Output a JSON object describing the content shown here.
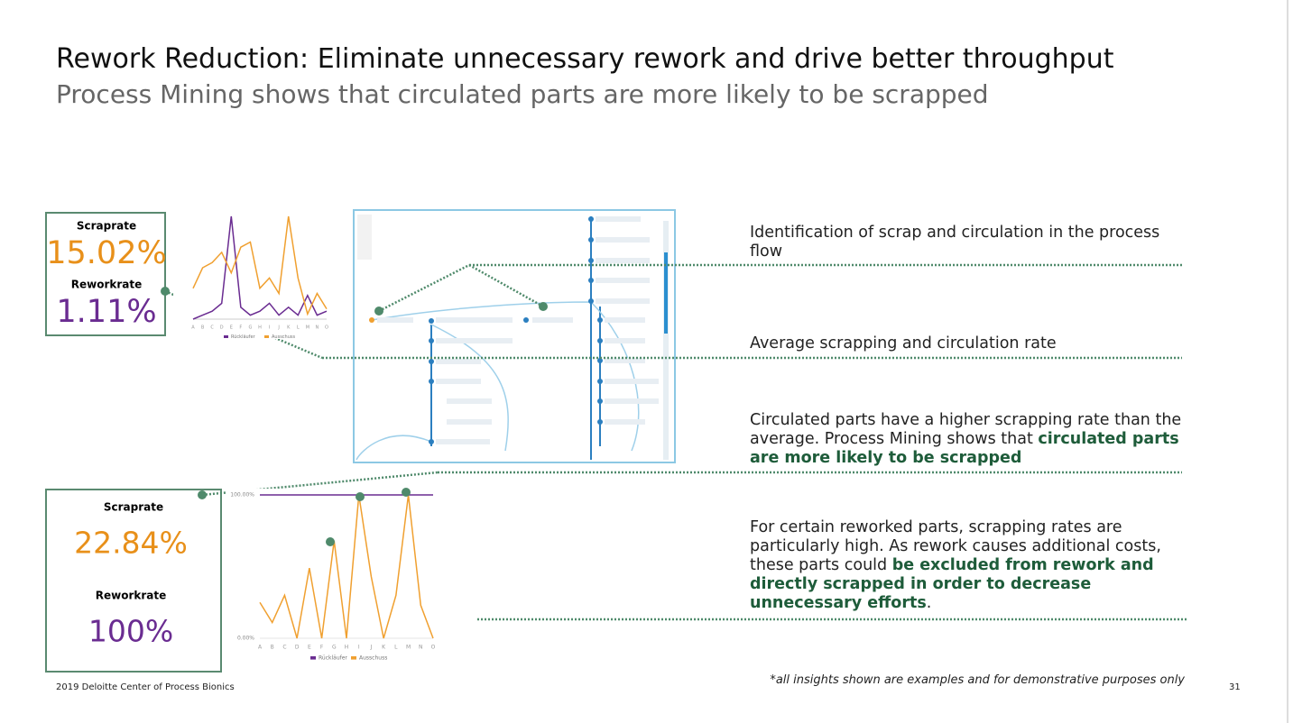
{
  "header": {
    "title": "Rework Reduction: Eliminate unnecessary rework and drive better throughput",
    "subtitle": "Process Mining shows that circulated parts are more likely to be scrapped"
  },
  "kpi_panels": [
    {
      "scrap_label": "Scraprate",
      "scrap_value": "15.02%",
      "rework_label": "Reworkrate",
      "rework_value": "1.11%"
    },
    {
      "scrap_label": "Scraprate",
      "scrap_value": "22.84%",
      "rework_label": "Reworkrate",
      "rework_value": "100%"
    }
  ],
  "upper_chart": {
    "type": "line",
    "categories": [
      "A",
      "B",
      "C",
      "D",
      "E",
      "F",
      "G",
      "H",
      "I",
      "J",
      "K",
      "L",
      "M",
      "N",
      "O"
    ],
    "series": [
      {
        "name": "Rückläufer",
        "color": "#6a2c91",
        "values": [
          0,
          0.1,
          0.2,
          0.4,
          2.6,
          0.3,
          0.1,
          0.2,
          0.4,
          0.1,
          0.3,
          0.1,
          0.6,
          0.1,
          0.2
        ]
      },
      {
        "name": "Ausschuss",
        "color": "#f0a030",
        "axis": "y2",
        "values": [
          12,
          20,
          22,
          26,
          18,
          28,
          30,
          12,
          16,
          10,
          40,
          16,
          2,
          10,
          4
        ]
      }
    ],
    "ylim": [
      0,
      2.6
    ],
    "y2lim": [
      0,
      40
    ]
  },
  "lower_chart": {
    "type": "line",
    "categories": [
      "A",
      "B",
      "C",
      "D",
      "E",
      "F",
      "G",
      "H",
      "I",
      "J",
      "K",
      "L",
      "M",
      "N",
      "O"
    ],
    "series": [
      {
        "name": "Rückläufer",
        "color": "#6a2c91",
        "values": [
          100,
          100,
          100,
          100,
          100,
          100,
          100,
          100,
          100,
          100,
          100,
          100,
          100,
          100,
          100
        ]
      },
      {
        "name": "Ausschuss",
        "color": "#f0a030",
        "values": [
          25,
          11,
          30,
          0,
          49,
          0,
          68,
          0,
          100,
          43,
          0,
          30,
          100,
          23,
          0
        ]
      }
    ],
    "ylim": [
      0,
      100
    ],
    "yticks": [
      {
        "value": 0,
        "label": "0.00%"
      },
      {
        "value": 100,
        "label": "100.00%"
      }
    ]
  },
  "insights": [
    [
      {
        "text": "Identification of scrap and circulation in the process flow"
      }
    ],
    [
      {
        "text": "Average scrapping and circulation rate"
      }
    ],
    [
      {
        "text": "Circulated parts have a higher scrapping rate than the average. Process Mining shows that "
      },
      {
        "text": "circulated parts are more likely to be scrapped",
        "bold": true
      }
    ],
    [
      {
        "text": "For certain reworked parts, scrapping rates are particularly high. As rework causes additional costs, these parts could "
      },
      {
        "text": "be excluded from rework and directly scrapped in order to decrease unnecessary efforts",
        "bold": true
      },
      {
        "text": "."
      }
    ]
  ],
  "footer": {
    "source": "2019 Deloitte Center of Process Bionics",
    "disclaimer": "*all insights shown are examples and for demonstrative purposes only",
    "page": "31"
  }
}
